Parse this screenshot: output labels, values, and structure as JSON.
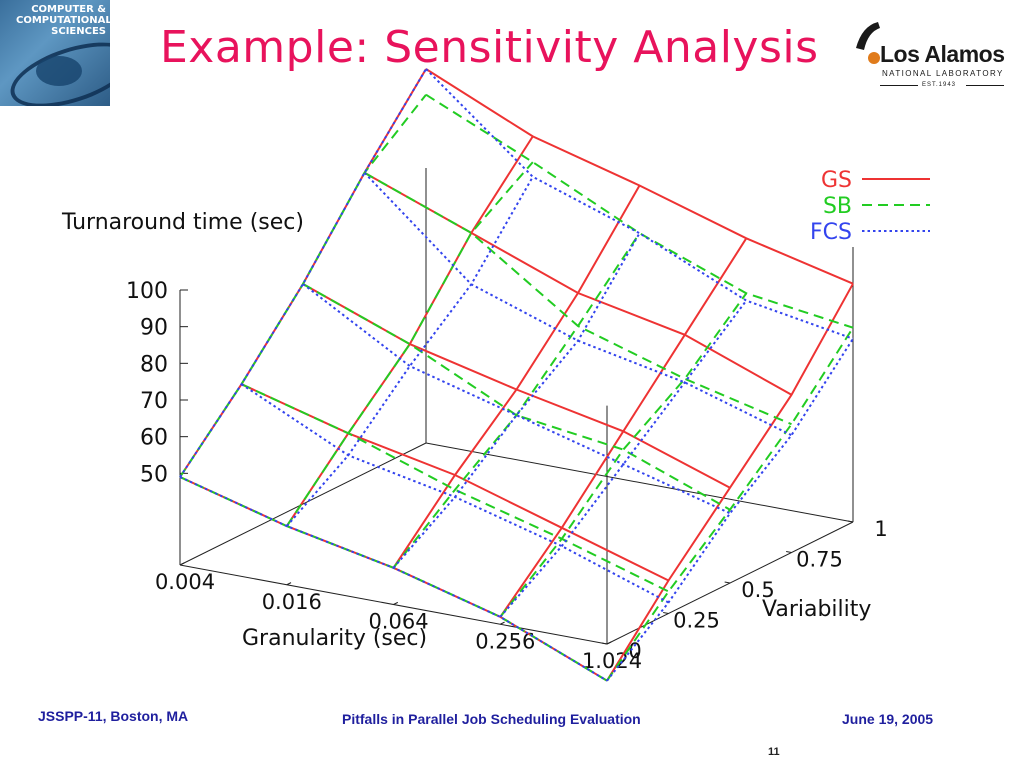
{
  "slide": {
    "title": "Example: Sensitivity Analysis",
    "page_number": "11"
  },
  "logos": {
    "left": {
      "icon": "ccs-logo-icon",
      "lines": [
        "COMPUTER &",
        "COMPUTATIONAL",
        "SCIENCES"
      ]
    },
    "right": {
      "icon": "los-alamos-logo-icon",
      "name": "Los Alamos",
      "sub": "NATIONAL LABORATORY",
      "est": "EST.1943"
    }
  },
  "footer": {
    "left": "JSSPP-11, Boston, MA",
    "center": "Pitfalls in Parallel Job Scheduling Evaluation",
    "right": "June 19, 2005"
  },
  "chart_data": {
    "type": "surface3d",
    "zlabel": "Turnaround time (sec)",
    "xlabel": "Granularity (sec)",
    "ylabel": "Variability",
    "x": [
      0.004,
      0.016,
      0.064,
      0.256,
      1.024
    ],
    "x_tick_labels": [
      "0.004",
      "0.016",
      "0.064",
      "0.256",
      "1.024"
    ],
    "y": [
      0,
      0.25,
      0.5,
      0.75,
      1
    ],
    "y_tick_labels": [
      "0",
      "0.25",
      "0.5",
      "0.75",
      "1"
    ],
    "z_ticks": [
      50,
      60,
      70,
      80,
      90,
      100
    ],
    "zlim": [
      25,
      100
    ],
    "legend_position": "top-right",
    "colors": {
      "GS": "#ee3333",
      "SB": "#22cc22",
      "FCS": "#3344ee",
      "axis": "#222222"
    },
    "series": [
      {
        "name": "GS",
        "z": [
          [
            49,
            66,
            85,
            107,
            127
          ],
          [
            41,
            58,
            74,
            96,
            114
          ],
          [
            35,
            52,
            67,
            85,
            106
          ],
          [
            27,
            43,
            61,
            79,
            97
          ],
          [
            15,
            34,
            51,
            68,
            90
          ]
        ]
      },
      {
        "name": "SB",
        "z": [
          [
            49,
            66,
            85,
            107,
            120
          ],
          [
            41,
            58,
            74,
            96,
            107
          ],
          [
            35,
            48,
            60,
            76,
            93
          ],
          [
            27,
            40,
            56,
            67,
            82
          ],
          [
            15,
            31,
            45,
            60,
            78
          ]
        ]
      },
      {
        "name": "FCS",
        "z": [
          [
            49,
            66,
            85,
            107,
            127
          ],
          [
            41,
            52,
            68,
            82,
            103
          ],
          [
            35,
            46,
            60,
            72,
            93
          ],
          [
            27,
            38,
            52,
            66,
            80
          ],
          [
            15,
            28,
            44,
            57,
            75
          ]
        ]
      }
    ]
  }
}
